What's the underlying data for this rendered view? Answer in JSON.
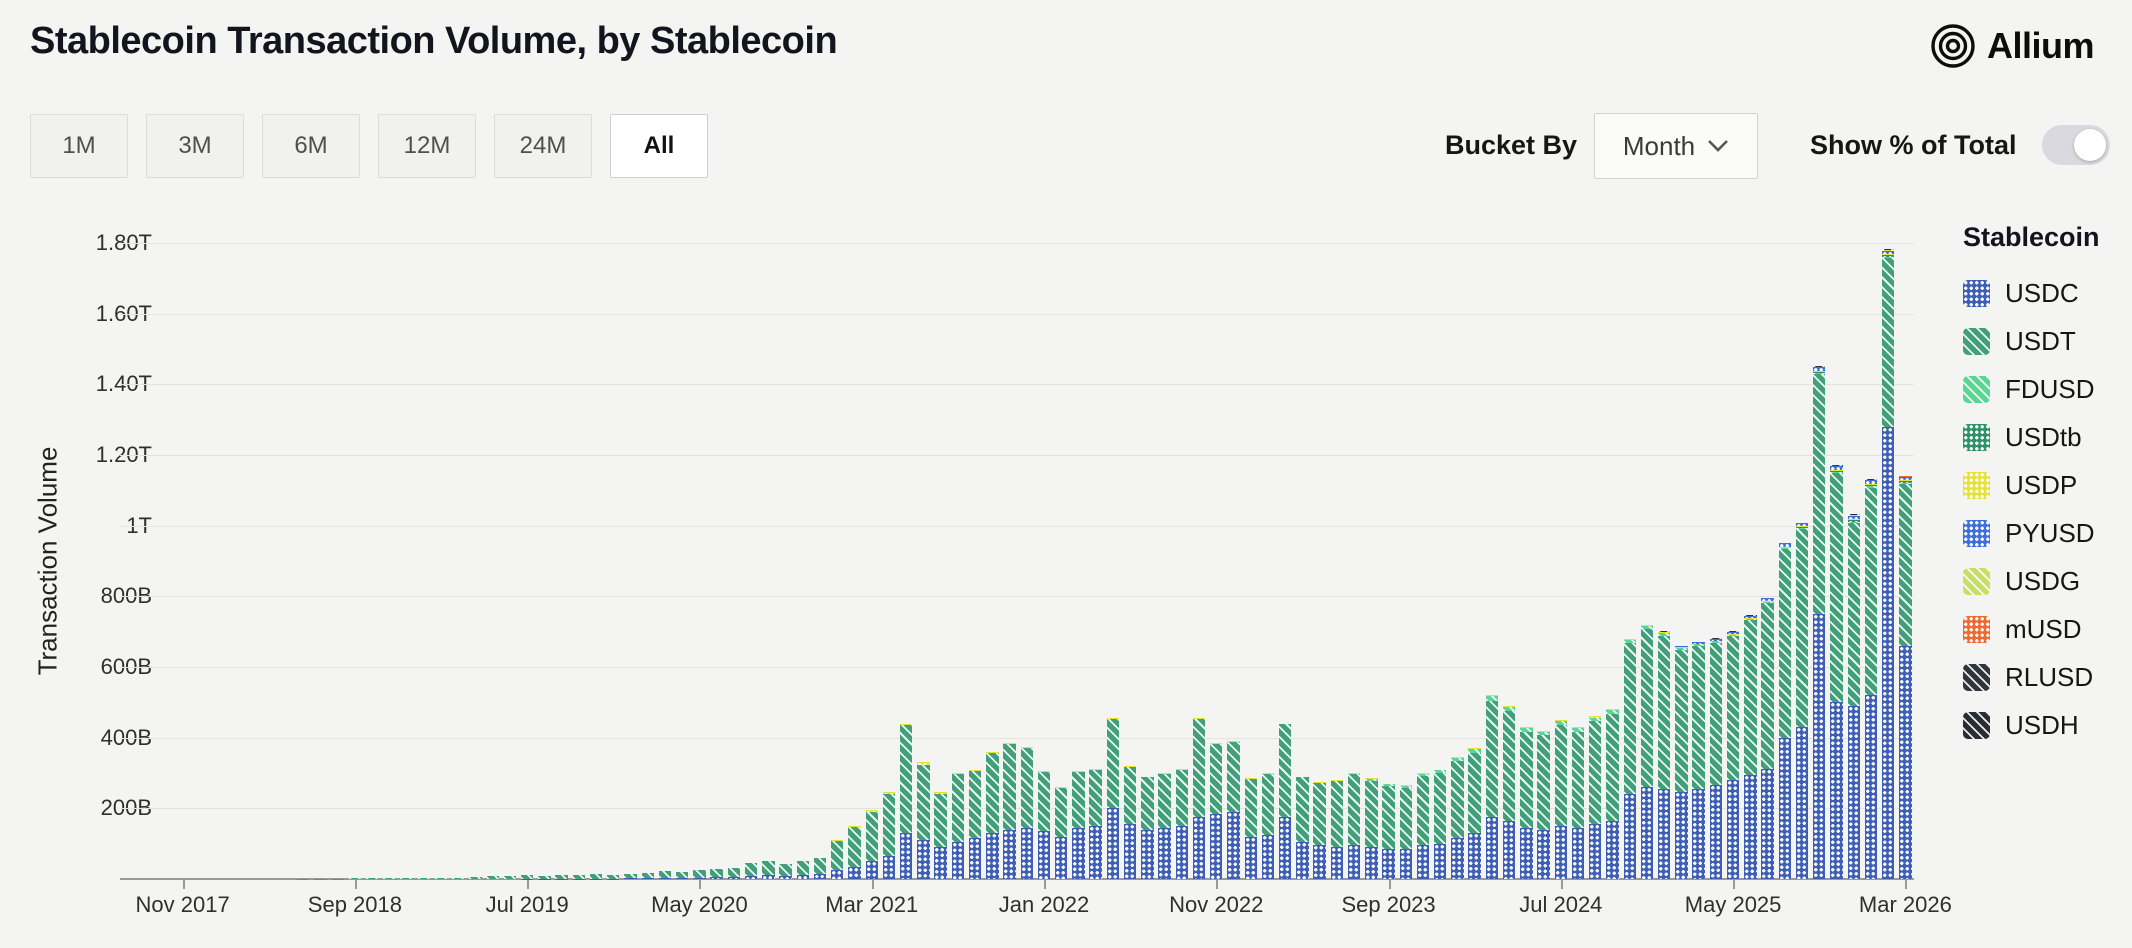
{
  "header": {
    "title": "Stablecoin Transaction Volume, by Stablecoin",
    "brand": "Allium"
  },
  "controls": {
    "range_buttons": [
      {
        "label": "1M",
        "selected": false
      },
      {
        "label": "3M",
        "selected": false
      },
      {
        "label": "6M",
        "selected": false
      },
      {
        "label": "12M",
        "selected": false
      },
      {
        "label": "24M",
        "selected": false
      },
      {
        "label": "All",
        "selected": true
      }
    ],
    "bucket_by_label": "Bucket By",
    "bucket_value": "Month",
    "show_pct_label": "Show % of Total",
    "toggle_on": false
  },
  "chart_data": {
    "type": "bar",
    "stacked": true,
    "unit": "billions USD",
    "ylabel": "Transaction Volume",
    "xlabel": "",
    "ylim": [
      0,
      1800
    ],
    "grid": true,
    "legend_title": "Stablecoin",
    "legend_position": "right",
    "bar_count": 101,
    "x_tick_every": 10,
    "x_tick_labels": [
      "Nov 2017",
      "Sep 2018",
      "Jul 2019",
      "May 2020",
      "Mar 2021",
      "Jan 2022",
      "Nov 2022",
      "Sep 2023",
      "Jul 2024",
      "May 2025",
      "Mar 2026"
    ],
    "yticks": [
      {
        "value": 200,
        "label": "200B"
      },
      {
        "value": 400,
        "label": "400B"
      },
      {
        "value": 600,
        "label": "600B"
      },
      {
        "value": 800,
        "label": "800B"
      },
      {
        "value": 1000,
        "label": "1T"
      },
      {
        "value": 1200,
        "label": "1.20T"
      },
      {
        "value": 1400,
        "label": "1.40T"
      },
      {
        "value": 1600,
        "label": "1.60T"
      },
      {
        "value": 1800,
        "label": "1.80T"
      }
    ],
    "series": [
      {
        "name": "USDC",
        "color": "#3e5fb5",
        "pattern": "dots",
        "values": [
          0,
          0,
          0,
          0,
          0,
          0,
          0,
          0,
          0,
          0,
          0.1,
          0.1,
          0.2,
          0.2,
          0.3,
          0.3,
          0.4,
          0.5,
          0.6,
          0.7,
          0.8,
          0.8,
          1,
          1,
          1.2,
          1.2,
          1.5,
          2,
          3,
          3,
          4,
          5,
          6,
          9,
          11,
          9,
          11,
          14,
          25,
          35,
          50,
          65,
          130,
          110,
          90,
          105,
          115,
          130,
          140,
          145,
          135,
          120,
          145,
          150,
          200,
          155,
          140,
          145,
          150,
          175,
          185,
          190,
          120,
          125,
          175,
          105,
          95,
          90,
          95,
          90,
          85,
          85,
          95,
          100,
          115,
          130,
          175,
          165,
          145,
          140,
          150,
          145,
          155,
          165,
          240,
          260,
          255,
          245,
          255,
          265,
          280,
          295,
          310,
          400,
          430,
          750,
          500,
          490,
          520,
          1280,
          660
        ]
      },
      {
        "name": "USDT",
        "color": "#41a07a",
        "pattern": "hatch",
        "values": [
          0.3,
          0.5,
          0.6,
          0.5,
          0.5,
          0.6,
          0.7,
          0.8,
          0.9,
          1.2,
          1.5,
          2,
          2.5,
          2.2,
          2.5,
          3,
          4,
          6,
          8,
          9,
          10,
          9,
          10,
          11,
          12,
          11,
          12,
          15,
          20,
          18,
          21,
          22,
          25,
          36,
          40,
          33,
          39,
          46,
          83,
          112,
          141,
          176,
          305,
          212,
          152,
          192,
          192,
          227,
          242,
          227,
          168,
          138,
          158,
          158,
          252,
          163,
          148,
          153,
          158,
          277,
          198,
          198,
          163,
          173,
          263,
          183,
          178,
          188,
          203,
          188,
          178,
          172,
          196,
          200,
          219,
          228,
          330,
          310,
          272,
          267,
          287,
          272,
          292,
          302,
          427,
          447,
          432,
          404,
          404,
          404,
          408,
          438,
          472,
          535,
          560,
          678,
          648,
          518,
          588,
          478,
          458
        ]
      },
      {
        "name": "FDUSD",
        "color": "#57d694",
        "pattern": "hatch",
        "values": [
          0,
          0,
          0,
          0,
          0,
          0,
          0,
          0,
          0,
          0,
          0,
          0,
          0,
          0,
          0,
          0,
          0,
          0,
          0,
          0,
          0,
          0,
          0,
          0,
          0,
          0,
          0,
          0,
          0,
          0,
          0,
          0,
          0,
          0,
          0,
          0,
          0,
          0,
          0,
          0,
          0,
          0,
          0,
          0,
          0,
          0,
          0,
          0,
          0,
          0,
          0,
          0,
          0,
          0,
          0,
          0,
          0,
          0,
          0,
          0,
          0,
          0,
          0,
          0,
          0,
          0,
          0,
          0,
          0,
          5,
          5,
          6,
          7,
          8,
          9,
          10,
          12,
          12,
          10,
          10,
          10,
          10,
          10,
          10,
          10,
          10,
          8,
          6,
          5,
          4,
          3,
          3,
          3,
          3,
          3,
          3,
          3,
          3,
          3,
          3,
          3
        ]
      },
      {
        "name": "USDtb",
        "color": "#2f9168",
        "pattern": "dots",
        "values": [
          0,
          0,
          0,
          0,
          0,
          0,
          0,
          0,
          0,
          0,
          0,
          0,
          0,
          0,
          0,
          0,
          0,
          0,
          0,
          0,
          0,
          0,
          0,
          0,
          0,
          0,
          0,
          0,
          0,
          0,
          0,
          0,
          0,
          0,
          0,
          0,
          0,
          0,
          0,
          0,
          0,
          0,
          0,
          0,
          0,
          0,
          0,
          0,
          0,
          0,
          0,
          0,
          0,
          0,
          0,
          0,
          0,
          0,
          0,
          0,
          0,
          0,
          0,
          0,
          0,
          0,
          0,
          0,
          0,
          0,
          0,
          0,
          0,
          0,
          0,
          0,
          0,
          0,
          0,
          0,
          0,
          0,
          0,
          0,
          0,
          0,
          0,
          0,
          0,
          0,
          0,
          0,
          0,
          0,
          3,
          5,
          5,
          5,
          5,
          5,
          5
        ]
      },
      {
        "name": "USDP",
        "color": "#e6e23d",
        "pattern": "dots",
        "values": [
          0,
          0,
          0,
          0,
          0,
          0,
          0,
          0,
          0,
          0,
          0,
          0,
          0,
          0,
          0,
          0,
          0,
          0,
          0,
          0,
          0,
          0,
          0,
          0,
          0,
          0,
          0,
          0,
          0,
          0,
          0,
          0,
          0,
          0,
          0,
          0,
          0,
          0,
          2,
          3,
          4,
          4,
          5,
          8,
          3,
          3,
          3,
          3,
          3,
          3,
          2,
          2,
          2,
          2,
          3,
          2,
          2,
          2,
          2,
          3,
          2,
          2,
          2,
          2,
          2,
          2,
          2,
          2,
          2,
          2,
          2,
          2,
          2,
          2,
          2,
          2,
          3,
          3,
          3,
          3,
          3,
          3,
          3,
          3,
          3,
          3,
          3,
          2,
          2,
          2,
          2,
          2,
          2,
          2,
          2,
          2,
          2,
          2,
          2,
          2,
          2
        ]
      },
      {
        "name": "PYUSD",
        "color": "#3f6fdd",
        "pattern": "dots",
        "values": [
          0,
          0,
          0,
          0,
          0,
          0,
          0,
          0,
          0,
          0,
          0,
          0,
          0,
          0,
          0,
          0,
          0,
          0,
          0,
          0,
          0,
          0,
          0,
          0,
          0,
          0,
          0,
          0,
          0,
          0,
          0,
          0,
          0,
          0,
          0,
          0,
          0,
          0,
          0,
          0,
          0,
          0,
          0,
          0,
          0,
          0,
          0,
          0,
          0,
          0,
          0,
          0,
          0,
          0,
          0,
          0,
          0,
          0,
          0,
          0,
          0,
          0,
          0,
          0,
          0,
          0,
          0,
          0,
          0,
          0,
          0,
          0,
          0,
          0,
          0,
          0,
          0,
          0,
          0,
          0,
          0,
          0,
          0,
          0,
          0,
          0,
          2,
          3,
          4,
          5,
          7,
          7,
          8,
          10,
          10,
          10,
          10,
          10,
          10,
          10,
          10
        ]
      },
      {
        "name": "USDG",
        "color": "#c9de66",
        "pattern": "hatch",
        "values": [
          0,
          0,
          0,
          0,
          0,
          0,
          0,
          0,
          0,
          0,
          0,
          0,
          0,
          0,
          0,
          0,
          0,
          0,
          0,
          0,
          0,
          0,
          0,
          0,
          0,
          0,
          0,
          0,
          0,
          0,
          0,
          0,
          0,
          0,
          0,
          0,
          0,
          0,
          0,
          0,
          0,
          0,
          0,
          0,
          0,
          0,
          0,
          0,
          0,
          0,
          0,
          0,
          0,
          0,
          0,
          0,
          0,
          0,
          0,
          0,
          0,
          0,
          0,
          0,
          0,
          0,
          0,
          0,
          0,
          0,
          0,
          0,
          0,
          0,
          0,
          0,
          0,
          0,
          0,
          0,
          0,
          0,
          0,
          0,
          0,
          0,
          0,
          0,
          0,
          0,
          0,
          0,
          0,
          0,
          0,
          1,
          1,
          1,
          1,
          1,
          1
        ]
      },
      {
        "name": "mUSD",
        "color": "#ef6a2f",
        "pattern": "dots",
        "values": [
          0,
          0,
          0,
          0,
          0,
          0,
          0,
          0,
          0,
          0,
          0,
          0,
          0,
          0,
          0,
          0,
          0,
          0,
          0,
          0,
          0,
          0,
          0,
          0,
          0,
          0,
          0,
          0,
          0,
          0,
          0,
          0,
          0,
          0,
          0,
          0,
          0,
          0,
          0,
          0,
          0,
          0,
          0,
          0,
          0,
          0,
          0,
          0,
          0,
          0,
          0,
          0,
          0,
          0,
          0,
          0,
          0,
          0,
          0,
          0,
          0,
          0,
          0,
          0,
          0,
          0,
          0,
          0,
          0,
          0,
          0,
          0,
          0,
          0,
          0,
          0,
          0,
          0,
          0,
          0,
          0,
          0,
          0,
          0,
          0,
          0,
          0,
          0,
          0,
          0,
          0,
          0,
          0,
          0,
          0,
          1,
          1,
          1,
          1,
          1,
          1
        ]
      },
      {
        "name": "RLUSD",
        "color": "#31353c",
        "pattern": "hatch",
        "values": [
          0,
          0,
          0,
          0,
          0,
          0,
          0,
          0,
          0,
          0,
          0,
          0,
          0,
          0,
          0,
          0,
          0,
          0,
          0,
          0,
          0,
          0,
          0,
          0,
          0,
          0,
          0,
          0,
          0,
          0,
          0,
          0,
          0,
          0,
          0,
          0,
          0,
          0,
          0,
          0,
          0,
          0,
          0,
          0,
          0,
          0,
          0,
          0,
          0,
          0,
          0,
          0,
          0,
          0,
          0,
          0,
          0,
          0,
          0,
          0,
          0,
          0,
          0,
          0,
          0,
          0,
          0,
          0,
          0,
          0,
          0,
          0,
          0,
          0,
          0,
          0,
          0,
          0,
          0,
          0,
          0,
          0,
          0,
          0,
          0,
          0,
          1,
          1,
          1,
          1,
          1,
          1,
          1,
          1,
          1,
          1,
          1,
          1,
          1,
          1,
          1
        ]
      },
      {
        "name": "USDH",
        "color": "#282c33",
        "pattern": "hatch",
        "values": [
          0,
          0,
          0,
          0,
          0,
          0,
          0,
          0,
          0,
          0,
          0,
          0,
          0,
          0,
          0,
          0,
          0,
          0,
          0,
          0,
          0,
          0,
          0,
          0,
          0,
          0,
          0,
          0,
          0,
          0,
          0,
          0,
          0,
          0,
          0,
          0,
          0,
          0,
          0,
          0,
          0,
          0,
          0,
          0,
          0,
          0,
          0,
          0,
          0,
          0,
          0,
          0,
          0,
          0,
          0,
          0,
          0,
          0,
          0,
          0,
          0,
          0,
          0,
          0,
          0,
          0,
          0,
          0,
          0,
          0,
          0,
          0,
          0,
          0,
          0,
          0,
          0,
          0,
          0,
          0,
          0,
          0,
          0,
          0,
          0,
          0,
          0,
          0,
          0,
          0,
          0,
          0,
          0,
          0,
          0,
          1,
          1,
          1,
          1,
          1,
          1
        ]
      }
    ]
  }
}
